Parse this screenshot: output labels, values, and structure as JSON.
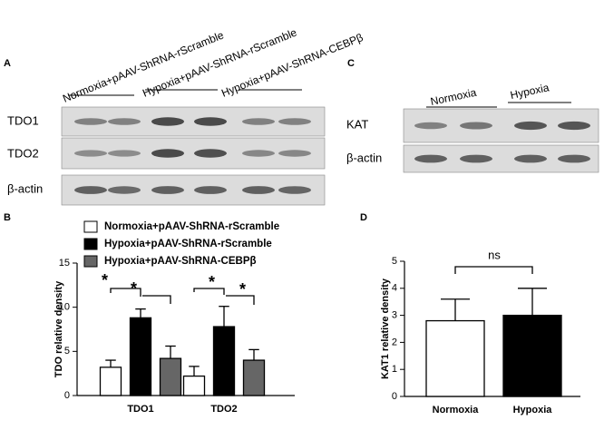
{
  "panels": {
    "a": "A",
    "b": "B",
    "c": "C",
    "d": "D"
  },
  "blot_a": {
    "lanes": [
      "Normoxia+pAAV-ShRNA-rScramble",
      "Hypoxia+pAAV-ShRNA-rScramble",
      "Hypoxia+pAAV-ShRNA-CEBPβ"
    ],
    "rows": [
      "TDO1",
      "TDO2",
      "β-actin"
    ]
  },
  "blot_c": {
    "lanes": [
      "Normoxia",
      "Hypoxia"
    ],
    "rows": [
      "KAT",
      "β-actin"
    ]
  },
  "chart_data": [
    {
      "type": "bar",
      "y_label": "TDO relative density",
      "categories": [
        "TDO1",
        "TDO2"
      ],
      "series": [
        {
          "name": "Normoxia+pAAV-ShRNA-rScramble",
          "color": "#ffffff",
          "values": [
            3.2,
            2.2
          ],
          "errors": [
            0.8,
            1.1
          ]
        },
        {
          "name": "Hypoxia+pAAV-ShRNA-rScramble",
          "color": "#000000",
          "values": [
            8.8,
            7.8
          ],
          "errors": [
            1.0,
            2.3
          ]
        },
        {
          "name": "Hypoxia+pAAV-ShRNA-CEBPβ",
          "color": "#666666",
          "values": [
            4.2,
            4.0
          ],
          "errors": [
            1.4,
            1.2
          ]
        }
      ],
      "ylim": [
        0,
        15
      ],
      "yticks": [
        0,
        5,
        10,
        15
      ],
      "annotations": [
        "*",
        "*",
        "*",
        "*"
      ]
    },
    {
      "type": "bar",
      "y_label": "KAT1 relative density",
      "categories": [
        "Normoxia",
        "Hypoxia"
      ],
      "values": [
        2.8,
        3.0
      ],
      "errors": [
        0.8,
        1.0
      ],
      "colors": [
        "#ffffff",
        "#000000"
      ],
      "ylim": [
        0,
        5
      ],
      "yticks": [
        0,
        1,
        2,
        3,
        4,
        5
      ],
      "annotations": [
        "ns"
      ]
    }
  ]
}
